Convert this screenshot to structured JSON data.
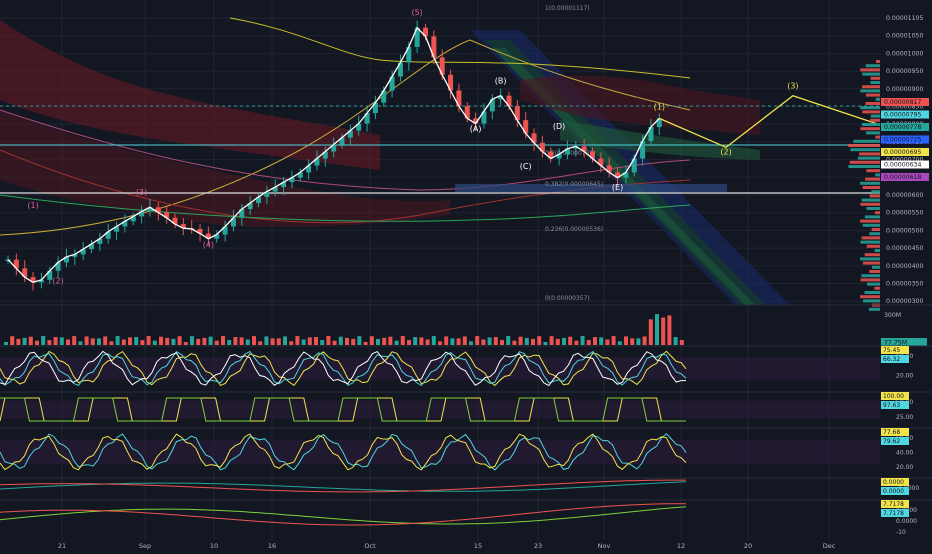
{
  "chart_data": {
    "type": "line",
    "symbol_note": "",
    "x_ticks": [
      "21",
      "Sep",
      "10",
      "16",
      "Oct",
      "15",
      "23",
      "Nov",
      "12",
      "20",
      "Dec"
    ],
    "price_axis": {
      "labels": [
        "0.00001105",
        "0.00001050",
        "0.00001000",
        "0.00000950",
        "0.00000900",
        "0.00000850",
        "0.00000800",
        "0.00000750",
        "0.00000700",
        "0.00000650",
        "0.00000600",
        "0.00000550",
        "0.00000500",
        "0.00000450",
        "0.00000400",
        "0.00000350",
        "0.00000300"
      ],
      "ylim": [
        3e-06,
        1.12e-05
      ]
    },
    "price_series": {
      "name": "",
      "values": [
        4.1e-06,
        3.85e-06,
        3.6e-06,
        3.45e-06,
        3.52e-06,
        3.78e-06,
        4.02e-06,
        4.18e-06,
        4.25e-06,
        4.4e-06,
        4.55e-06,
        4.7e-06,
        4.9e-06,
        5.05e-06,
        5.2e-06,
        5.34e-06,
        5.48e-06,
        5.6e-06,
        5.45e-06,
        5.3e-06,
        5.12e-06,
        5e-06,
        4.98e-06,
        4.85e-06,
        4.7e-06,
        4.82e-06,
        5.05e-06,
        5.3e-06,
        5.55e-06,
        5.72e-06,
        5.9e-06,
        6.05e-06,
        6.18e-06,
        6.32e-06,
        6.45e-06,
        6.6e-06,
        6.8e-06,
        7e-06,
        7.2e-06,
        7.4e-06,
        7.6e-06,
        7.8e-06,
        8e-06,
        8.3e-06,
        8.6e-06,
        8.95e-06,
        9.35e-06,
        9.75e-06,
        1.02e-05,
        1.075e-05,
        1.05e-05,
        9.9e-06,
        9.4e-06,
        8.95e-06,
        8.5e-06,
        8.15e-06,
        8e-06,
        8.35e-06,
        8.7e-06,
        8.8e-06,
        8.5e-06,
        8.1e-06,
        7.72e-06,
        7.45e-06,
        7.2e-06,
        7e-06,
        7.12e-06,
        7.28e-06,
        7.35e-06,
        7.2e-06,
        7e-06,
        6.8e-06,
        6.6e-06,
        6.45e-06,
        6.6e-06,
        7e-06,
        7.5e-06,
        7.9e-06,
        8.15e-06
      ]
    },
    "wave_labels": [
      {
        "label": "(1)",
        "x": 3,
        "y": 5.58e-06
      },
      {
        "label": "(2)",
        "x": 6,
        "y": 3.42e-06
      },
      {
        "label": "(3)",
        "x": 16,
        "y": 5.95e-06
      },
      {
        "label": "(4)",
        "x": 24,
        "y": 4.45e-06
      },
      {
        "label": "(5)",
        "x": 49,
        "y": 1.112e-05
      },
      {
        "label": "(A)",
        "x": 56,
        "y": 7.78e-06
      },
      {
        "label": "(B)",
        "x": 59,
        "y": 9.15e-06
      },
      {
        "label": "(C)",
        "x": 62,
        "y": 6.7e-06
      },
      {
        "label": "(D)",
        "x": 66,
        "y": 7.85e-06
      },
      {
        "label": "(E)",
        "x": 73,
        "y": 6.1e-06
      },
      {
        "label": "(1)",
        "x": 78,
        "y": 8.4e-06
      },
      {
        "label": "(2)",
        "x": 86,
        "y": 7.12e-06
      },
      {
        "label": "(3)",
        "x": 94,
        "y": 9e-06
      }
    ],
    "projection": {
      "x": [
        78,
        86,
        94,
        104
      ],
      "y": [
        8.15e-06,
        7.32e-06,
        8.8e-06,
        8e-06
      ]
    },
    "fib_labels": [
      "1(0.00001117)",
      "0.5(0.00000732)",
      "0.382(0.00000645)",
      "0.236(0.00000536)",
      "0(0.00000357)"
    ],
    "right_badges": [
      "0.00000817",
      "0.00000795",
      "0.00000778",
      "0.00000725",
      "0.00000695",
      "0.00000634",
      "0.00000618"
    ],
    "volume": {
      "label": "300M",
      "badge": "77.75M"
    },
    "panels": [
      {
        "ticks": [
          "60.00",
          "20.00"
        ],
        "badges": [
          "75.45",
          "66.32"
        ]
      },
      {
        "ticks": [
          "50.00",
          "25.00"
        ],
        "badges": [
          "100.00",
          "97.63"
        ]
      },
      {
        "ticks": [
          "60.00",
          "40.00",
          "20.00"
        ],
        "badges": [
          "77.68",
          "79.62"
        ]
      },
      {
        "ticks": [
          "-0.0000"
        ],
        "badges": [
          "0.0000",
          "0.0000"
        ]
      },
      {
        "ticks": [
          "0.0000",
          "0.0000",
          "-10"
        ],
        "badges": [
          "7.7178",
          "7.7178"
        ]
      }
    ]
  }
}
